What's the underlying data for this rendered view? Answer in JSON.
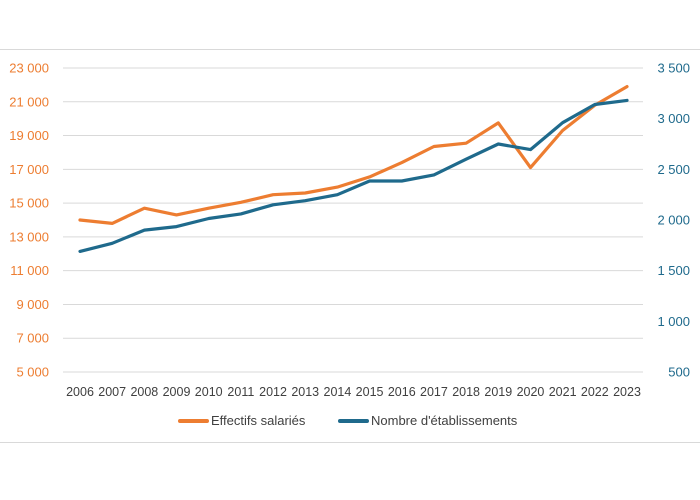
{
  "chart_data": {
    "type": "line",
    "categories": [
      "2006",
      "2007",
      "2008",
      "2009",
      "2010",
      "2011",
      "2012",
      "2013",
      "2014",
      "2015",
      "2016",
      "2017",
      "2018",
      "2019",
      "2020",
      "2021",
      "2022",
      "2023"
    ],
    "y_left": {
      "range": [
        5000,
        23000
      ],
      "ticks": [
        5000,
        7000,
        9000,
        11000,
        13000,
        15000,
        17000,
        19000,
        21000,
        23000
      ],
      "tick_labels": [
        "5 000",
        "7 000",
        "9 000",
        "11 000",
        "13 000",
        "15 000",
        "17 000",
        "19 000",
        "21 000",
        "23 000"
      ]
    },
    "y_right": {
      "range": [
        500,
        3500
      ],
      "ticks": [
        500,
        1000,
        1500,
        2000,
        2500,
        3000,
        3500
      ],
      "tick_labels": [
        "500",
        "1 000",
        "1 500",
        "2 000",
        "2 500",
        "3 000",
        "3 500"
      ]
    },
    "series": [
      {
        "name": "Effectifs salariés",
        "axis": "left",
        "color": "#ed7d31",
        "values": [
          14000,
          13800,
          14700,
          14300,
          14700,
          15050,
          15500,
          15600,
          15950,
          16550,
          17400,
          18350,
          18550,
          19750,
          17100,
          19300,
          20800,
          21900
        ]
      },
      {
        "name": "Nombre d'établissements",
        "axis": "right",
        "color": "#1f6a8c",
        "values": [
          1690,
          1770,
          1900,
          1935,
          2015,
          2060,
          2150,
          2190,
          2250,
          2385,
          2385,
          2445,
          2600,
          2750,
          2695,
          2960,
          3140,
          3180
        ]
      }
    ],
    "grid": true,
    "legend": "bottom"
  }
}
